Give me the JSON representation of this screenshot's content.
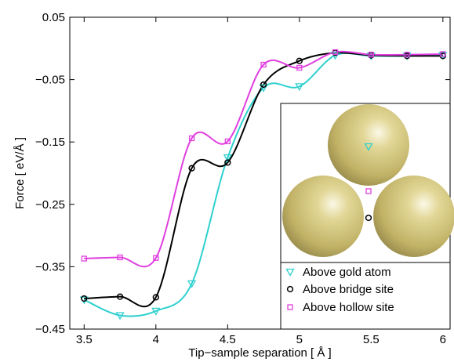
{
  "chart_data": {
    "type": "line",
    "xlabel": "Tip−sample separation [ Å ]",
    "ylabel": "Force [ eV/Å ]",
    "xlim": [
      3.4,
      6.05
    ],
    "ylim": [
      -0.45,
      0.05
    ],
    "xticks": [
      3.5,
      4,
      4.5,
      5,
      5.5,
      6
    ],
    "xtick_labels": [
      "3.5",
      "4",
      "4.5",
      "5",
      "5.5",
      "6"
    ],
    "yticks": [
      0.05,
      -0.05,
      -0.15,
      -0.25,
      -0.35,
      -0.45
    ],
    "ytick_labels": [
      "0.05",
      "−0.05",
      "−0.15",
      "−0.25",
      "−0.35",
      "−0.45"
    ],
    "grid": false,
    "legend_position": "bottom-right",
    "series": [
      {
        "name": "Above gold atom",
        "color": "#30d0d0",
        "marker": "triangle-down",
        "x": [
          3.5,
          3.75,
          4.0,
          4.25,
          4.5,
          4.75,
          5.0,
          5.25,
          5.5,
          5.75,
          6.0
        ],
        "y": [
          -0.403,
          -0.428,
          -0.421,
          -0.377,
          -0.175,
          -0.063,
          -0.061,
          -0.011,
          -0.012,
          -0.012,
          -0.011
        ]
      },
      {
        "name": "Above bridge site",
        "color": "#000000",
        "marker": "circle",
        "x": [
          3.5,
          3.75,
          4.0,
          4.25,
          4.5,
          4.75,
          5.0,
          5.25,
          5.5,
          5.75,
          6.0
        ],
        "y": [
          -0.401,
          -0.398,
          -0.399,
          -0.192,
          -0.183,
          -0.058,
          -0.02,
          -0.007,
          -0.011,
          -0.012,
          -0.012
        ]
      },
      {
        "name": "Above hollow site",
        "color": "#e040e0",
        "marker": "square",
        "x": [
          3.5,
          3.75,
          4.0,
          4.25,
          4.5,
          4.75,
          5.0,
          5.25,
          5.5,
          5.75,
          6.0
        ],
        "y": [
          -0.337,
          -0.335,
          -0.336,
          -0.144,
          -0.149,
          -0.026,
          -0.031,
          -0.006,
          -0.01,
          -0.01,
          -0.009
        ]
      }
    ]
  },
  "inset": {
    "description_icon": "gold-atom-triad-icon",
    "atom_color": "#c9bb6e",
    "markers": [
      "triangle-down",
      "circle",
      "square"
    ]
  }
}
